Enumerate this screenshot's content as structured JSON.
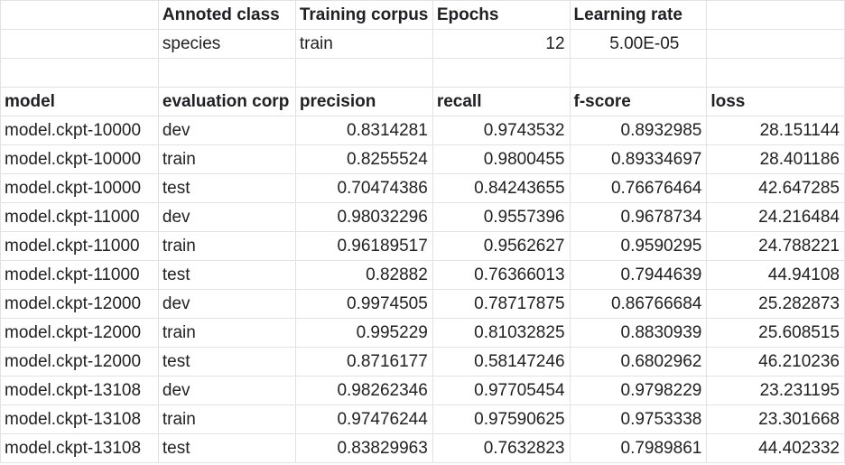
{
  "meta": {
    "headers": [
      "Annoted class",
      "Training corpus",
      "Epochs",
      "Learning rate"
    ],
    "values": {
      "annotated_class": "species",
      "training_corpus": "train",
      "epochs": "12",
      "learning_rate": "5.00E-05"
    }
  },
  "results": {
    "headers": [
      "model",
      "evaluation corp",
      "precision",
      "recall",
      "f-score",
      "loss"
    ],
    "rows": [
      [
        "model.ckpt-10000",
        "dev",
        "0.8314281",
        "0.9743532",
        "0.8932985",
        "28.151144"
      ],
      [
        "model.ckpt-10000",
        "train",
        "0.8255524",
        "0.9800455",
        "0.89334697",
        "28.401186"
      ],
      [
        "model.ckpt-10000",
        "test",
        "0.70474386",
        "0.84243655",
        "0.76676464",
        "42.647285"
      ],
      [
        "model.ckpt-11000",
        "dev",
        "0.98032296",
        "0.9557396",
        "0.9678734",
        "24.216484"
      ],
      [
        "model.ckpt-11000",
        "train",
        "0.96189517",
        "0.9562627",
        "0.9590295",
        "24.788221"
      ],
      [
        "model.ckpt-11000",
        "test",
        "0.82882",
        "0.76366013",
        "0.7944639",
        "44.94108"
      ],
      [
        "model.ckpt-12000",
        "dev",
        "0.9974505",
        "0.78717875",
        "0.86766684",
        "25.282873"
      ],
      [
        "model.ckpt-12000",
        "train",
        "0.995229",
        "0.81032825",
        "0.8830939",
        "25.608515"
      ],
      [
        "model.ckpt-12000",
        "test",
        "0.8716177",
        "0.58147246",
        "0.6802962",
        "46.210236"
      ],
      [
        "model.ckpt-13108",
        "dev",
        "0.98262346",
        "0.97705454",
        "0.9798229",
        "23.231195"
      ],
      [
        "model.ckpt-13108",
        "train",
        "0.97476244",
        "0.97590625",
        "0.9753338",
        "23.301668"
      ],
      [
        "model.ckpt-13108",
        "test",
        "0.83829963",
        "0.7632823",
        "0.7989861",
        "44.402332"
      ]
    ]
  }
}
